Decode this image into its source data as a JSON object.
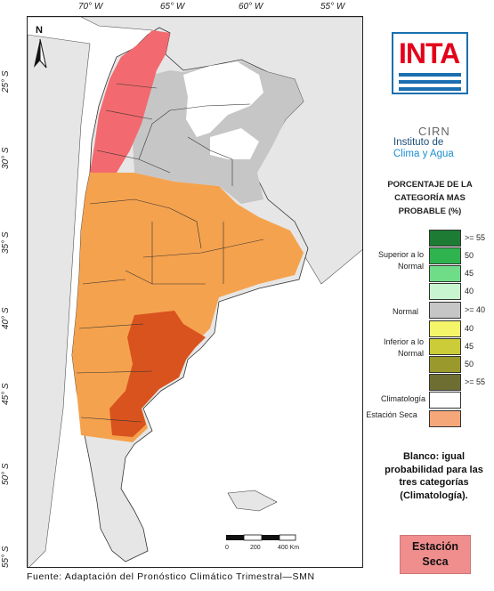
{
  "map": {
    "longitude_labels": [
      "70° W",
      "65° W",
      "60° W",
      "55° W"
    ],
    "latitude_labels": [
      "25° S",
      "30° S",
      "35° S",
      "40° S",
      "45° S",
      "50° S",
      "55° S"
    ],
    "north_label": "N",
    "scale_labels": [
      "0",
      "200",
      "400 Km"
    ],
    "colors": {
      "background_land": "#e6e6e6",
      "normal": "#c6c6c6",
      "climatology": "#ffffff",
      "dry_season": "#f5a24e",
      "dry_season_strong": "#d9531e",
      "dry_station": "#f26a6f",
      "ocean": "#ffffff"
    }
  },
  "logos": {
    "inta": "INTA",
    "cirn": "CIRN",
    "instituto": "Instituto de",
    "clima": "Clima y Agua"
  },
  "legend": {
    "title": "PORCENTAJE DE LA CATEGORÍA MAS PROBABLE (%)",
    "superior_label": "Superior a lo Normal",
    "normal_label": "Normal",
    "inferior_label": "Inferior a lo Normal",
    "climatologia_label": "Climatología",
    "estacion_label": "Estación Seca",
    "swatches": [
      {
        "color": "#1e7b34",
        "value": ">= 55"
      },
      {
        "color": "#2fb34f",
        "value": "50"
      },
      {
        "color": "#6fdc88",
        "value": "45"
      },
      {
        "color": "#c8f5cf",
        "value": "40"
      },
      {
        "color": "#c6c6c6",
        "value": ">= 40"
      },
      {
        "color": "#f5f56a",
        "value": "40"
      },
      {
        "color": "#cbcc37",
        "value": "45"
      },
      {
        "color": "#9a9a2c",
        "value": "50"
      },
      {
        "color": "#6e6e32",
        "value": ">= 55"
      },
      {
        "color": "#ffffff",
        "value": ""
      },
      {
        "color": "#f6a77a",
        "value": ""
      }
    ]
  },
  "note": "Blanco: igual probabilidad para las tres categorías (Climatología).",
  "estacion_box": "Estación Seca",
  "footer": "Fuente: Adaptación del Pronóstico Climático Trimestral—SMN"
}
